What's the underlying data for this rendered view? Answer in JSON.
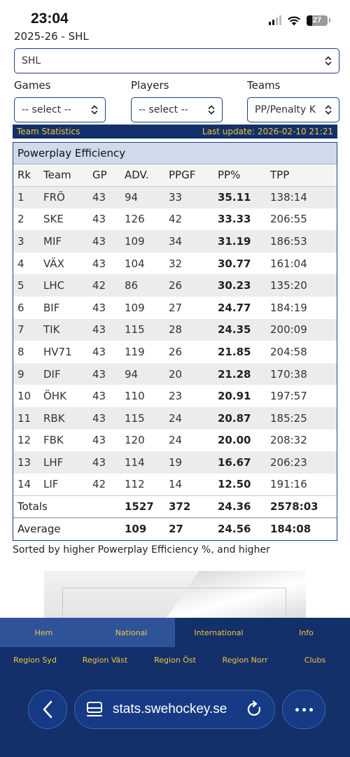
{
  "status": {
    "time": "23:04",
    "battery": "27"
  },
  "season_label": "2025-26 - SHL",
  "league_select": {
    "value": "SHL"
  },
  "filters": [
    {
      "label": "Games",
      "value": "-- select --"
    },
    {
      "label": "Players",
      "value": "-- select --"
    },
    {
      "label": "Teams",
      "value": "PP/Penalty K"
    }
  ],
  "stats_bar": {
    "left": "Team Statistics",
    "right": "Last update: 2026-02-10 21:21"
  },
  "table": {
    "title": "Powerplay Efficiency",
    "headers": [
      "Rk",
      "Team",
      "GP",
      "ADV.",
      "PPGF",
      "PP%",
      "TPP"
    ],
    "rows": [
      [
        "1",
        "FRÖ",
        "43",
        "94",
        "33",
        "35.11",
        "138:14"
      ],
      [
        "2",
        "SKE",
        "43",
        "126",
        "42",
        "33.33",
        "206:55"
      ],
      [
        "3",
        "MIF",
        "43",
        "109",
        "34",
        "31.19",
        "186:53"
      ],
      [
        "4",
        "VÄX",
        "43",
        "104",
        "32",
        "30.77",
        "161:04"
      ],
      [
        "5",
        "LHC",
        "42",
        "86",
        "26",
        "30.23",
        "135:20"
      ],
      [
        "6",
        "BIF",
        "43",
        "109",
        "27",
        "24.77",
        "184:19"
      ],
      [
        "7",
        "TIK",
        "43",
        "115",
        "28",
        "24.35",
        "200:09"
      ],
      [
        "8",
        "HV71",
        "43",
        "119",
        "26",
        "21.85",
        "204:58"
      ],
      [
        "9",
        "DIF",
        "43",
        "94",
        "20",
        "21.28",
        "170:38"
      ],
      [
        "10",
        "ÖHK",
        "43",
        "110",
        "23",
        "20.91",
        "197:57"
      ],
      [
        "11",
        "RBK",
        "43",
        "115",
        "24",
        "20.87",
        "185:25"
      ],
      [
        "12",
        "FBK",
        "43",
        "120",
        "24",
        "20.00",
        "208:32"
      ],
      [
        "13",
        "LHF",
        "43",
        "114",
        "19",
        "16.67",
        "206:23"
      ],
      [
        "14",
        "LIF",
        "42",
        "112",
        "14",
        "12.50",
        "191:16"
      ]
    ],
    "totals": {
      "label": "Totals",
      "adv": "1527",
      "ppgf": "372",
      "pp": "24.36",
      "tpp": "2578:03"
    },
    "average": {
      "label": "Average",
      "adv": "109",
      "ppgf": "27",
      "pp": "24.56",
      "tpp": "184:08"
    }
  },
  "sorted_note": {
    "a": "Sorted by higher ",
    "b": "Powerplay Efficiency %",
    "c": ", and higher"
  },
  "nav_primary": [
    "Hem",
    "National",
    "International",
    "Info"
  ],
  "nav_secondary": [
    "Region Syd",
    "Region Väst",
    "Region Öst",
    "Region Norr",
    "Clubs"
  ],
  "browser": {
    "url": "stats.swehockey.se"
  }
}
